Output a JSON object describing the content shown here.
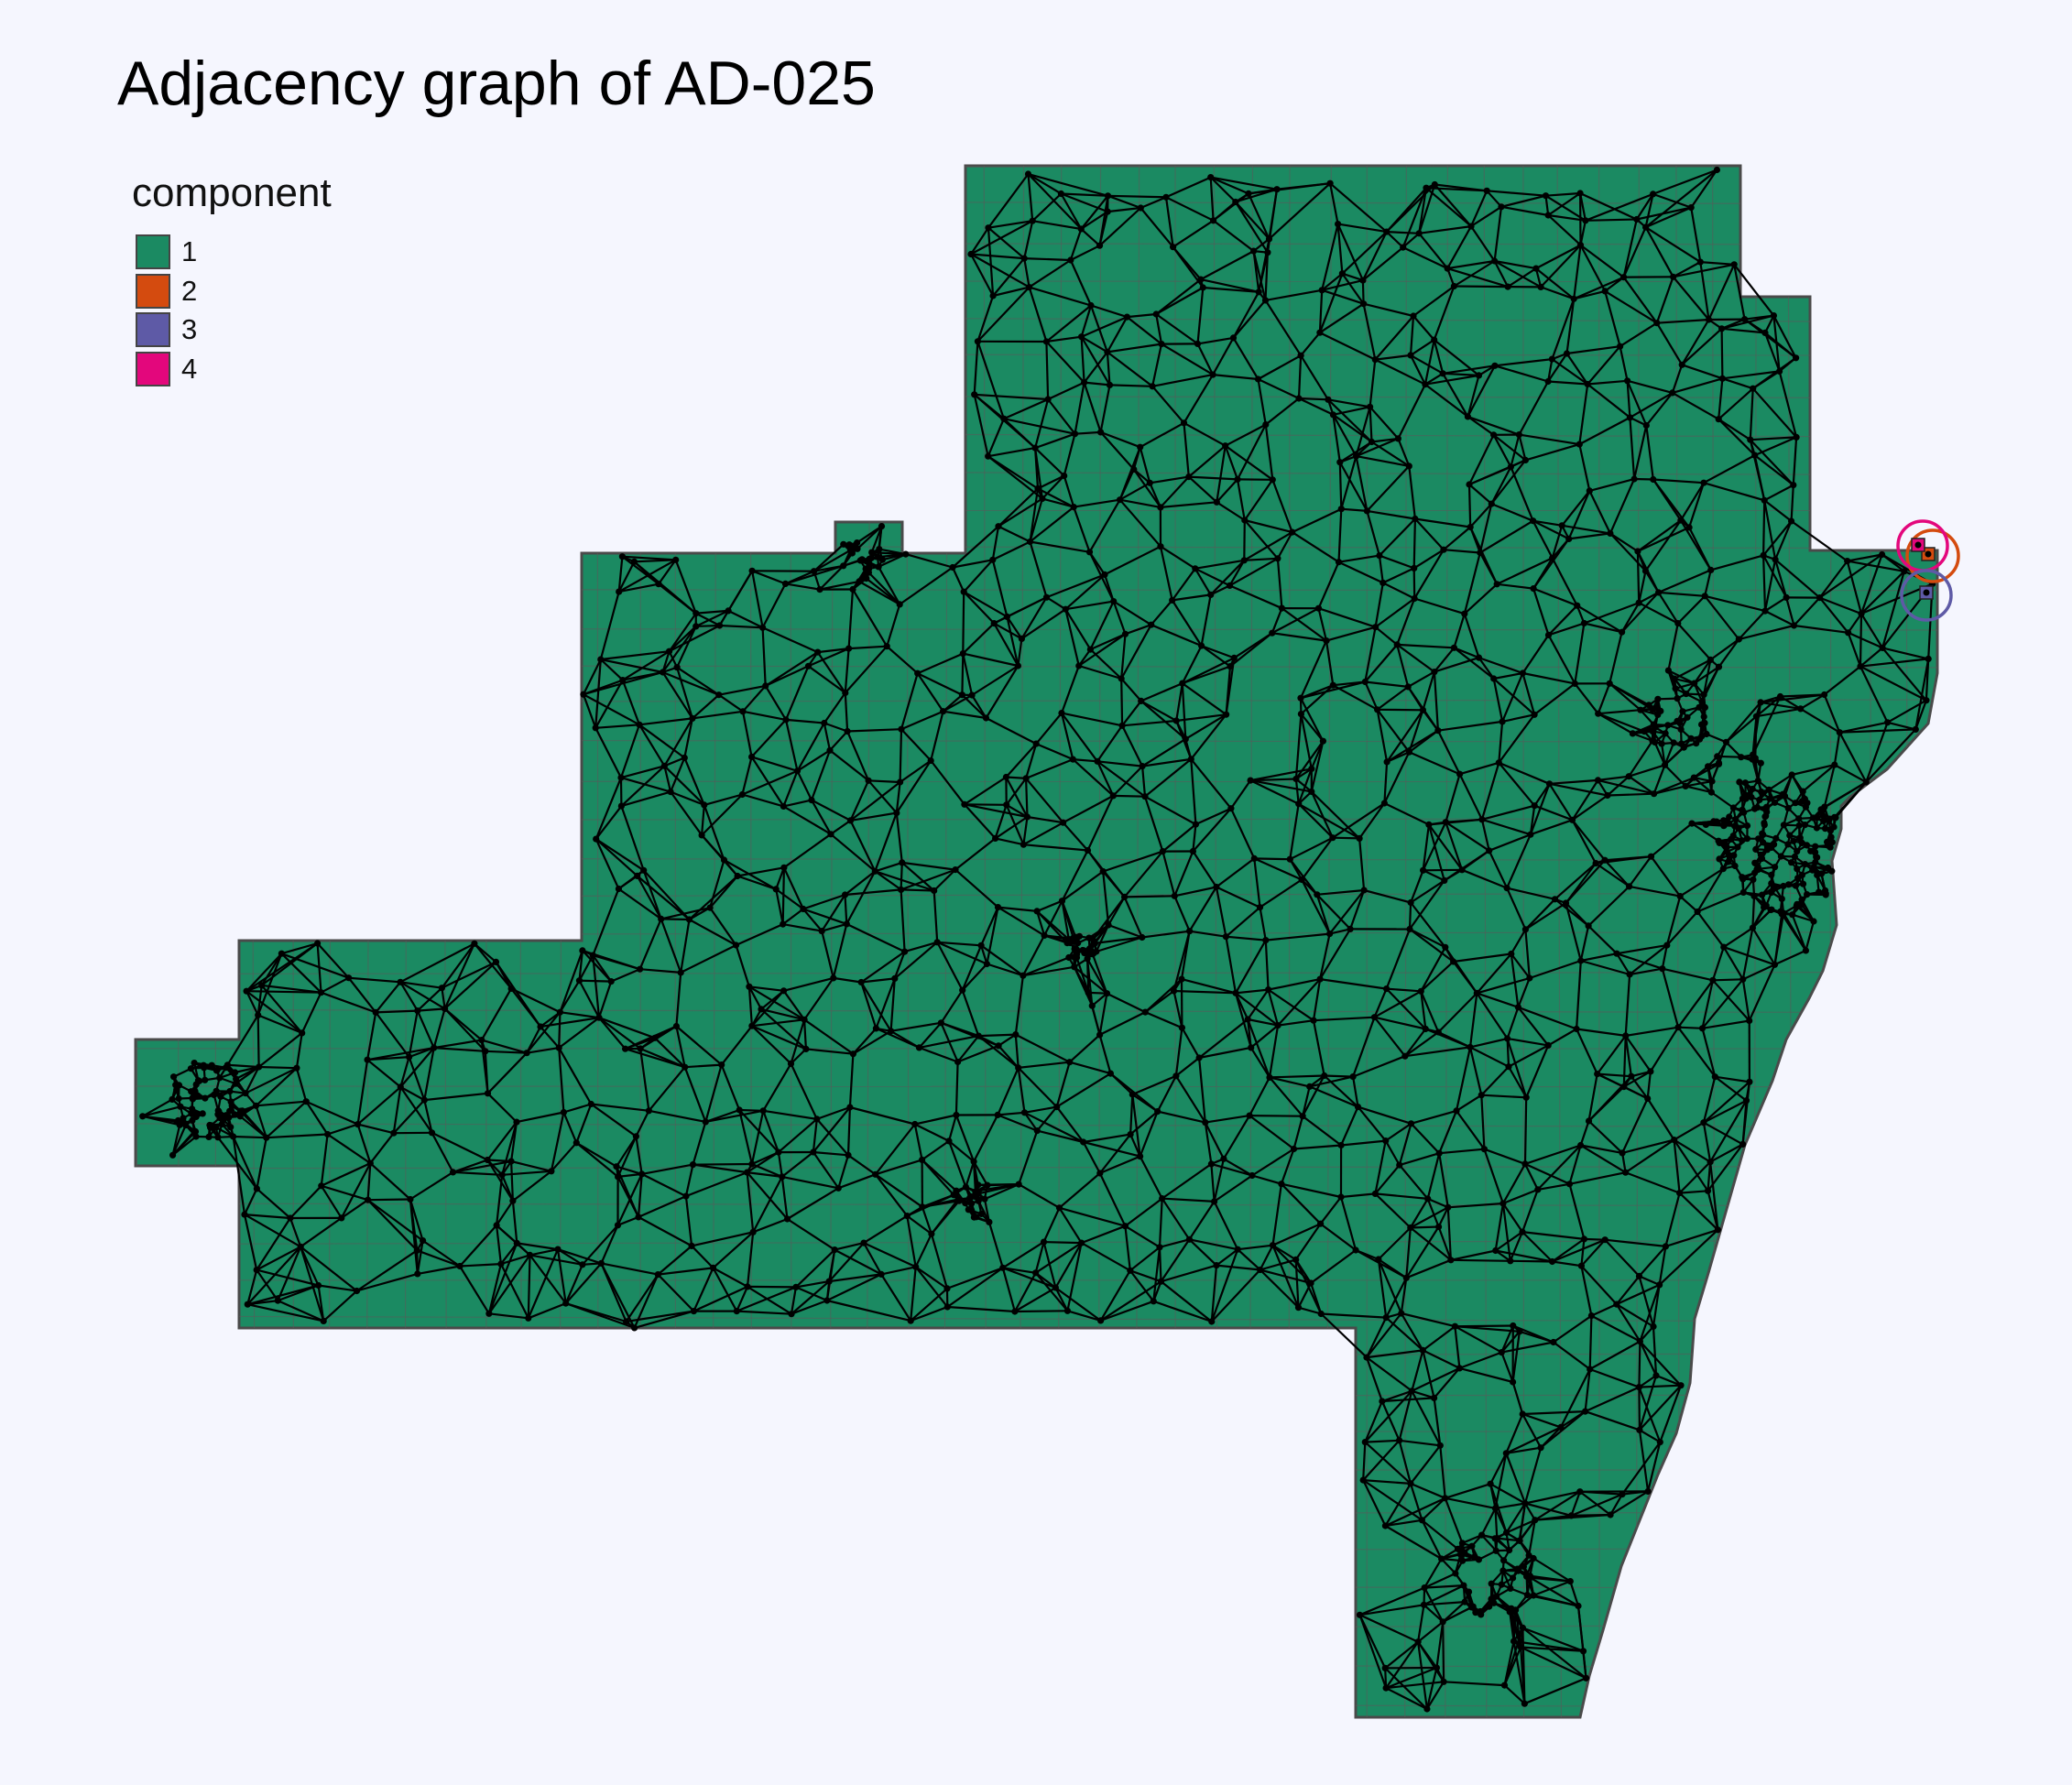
{
  "title": "Adjacency graph of AD-025",
  "legend": {
    "title": "component",
    "items": [
      {
        "label": "1",
        "color": "#1b8a62"
      },
      {
        "label": "2",
        "color": "#d44b0f"
      },
      {
        "label": "3",
        "color": "#5e5aa6"
      },
      {
        "label": "4",
        "color": "#e3077c"
      }
    ]
  },
  "colors": {
    "background": "#f5f6fe",
    "region_outline": "#4a4a4a",
    "precinct_lines": "#5a5a5a",
    "graph_edges": "#000000"
  },
  "map": {
    "components_shown": 4,
    "main_component": "1",
    "highlighted_components": [
      "2",
      "3",
      "4"
    ]
  }
}
